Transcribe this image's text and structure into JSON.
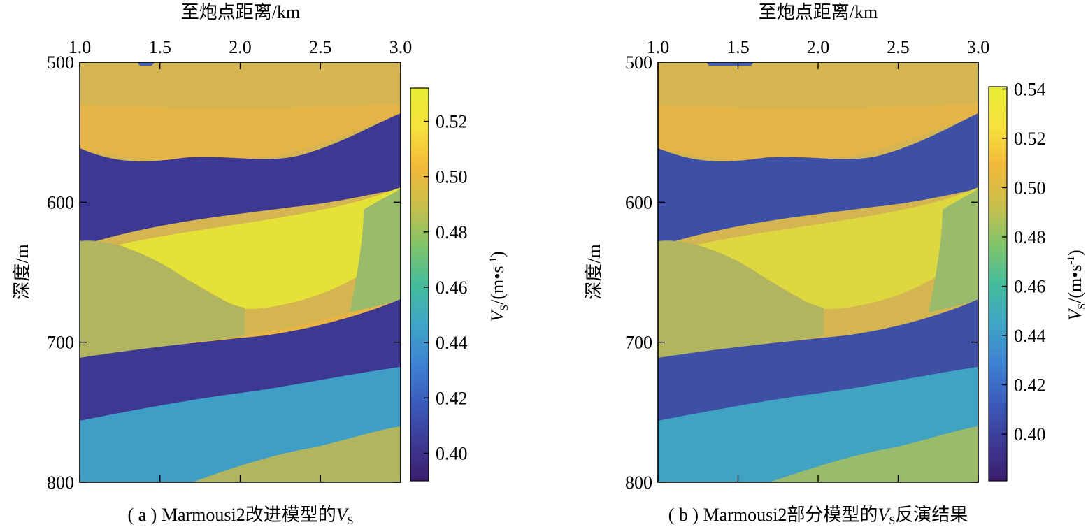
{
  "colors": {
    "layer_dark": "#3d3892",
    "layer_blue": "#3f5fb0",
    "layer_cyan": "#3f9ec5",
    "layer_teal": "#47aea5",
    "layer_green": "#9aba6c",
    "layer_olive": "#b2b55f",
    "layer_sand": "#d5b552",
    "layer_orange": "#e8b444",
    "layer_yellow": "#e4e137",
    "panel_b_dark": "#3e4fa6",
    "panel_b_cyan": "#41a3c2",
    "panel_b_yellow": "#ddd83f",
    "colormap": [
      "#3c1e6e",
      "#3c3b95",
      "#3a5cbc",
      "#3d82d3",
      "#3ea6c6",
      "#44bd9b",
      "#82c46a",
      "#c9bf4a",
      "#f3b93a",
      "#f6e23b",
      "#e8ee33"
    ]
  },
  "chart_data": [
    {
      "type": "heatmap",
      "caption_prefix": "( a ) Marmousi2改进模型的",
      "caption_var": "V",
      "caption_sub": "S",
      "caption_suffix": "",
      "xlabel": "至炮点距离/km",
      "ylabel": "深度/m",
      "xlim": [
        1.0,
        3.0
      ],
      "ylim": [
        500,
        800
      ],
      "x_ticks": [
        "1.0",
        "1.5",
        "2.0",
        "2.5",
        "3.0"
      ],
      "y_ticks": [
        "500",
        "600",
        "700",
        "800"
      ],
      "colorbar": {
        "label_var": "V",
        "label_sub": "S",
        "label_unit": "/(m•s",
        "label_exp": "-1",
        "label_close": ")",
        "range": [
          0.39,
          0.532
        ],
        "ticks": [
          "0.40",
          "0.42",
          "0.44",
          "0.46",
          "0.48",
          "0.50",
          "0.52"
        ]
      }
    },
    {
      "type": "heatmap",
      "caption_prefix": "( b ) Marmousi2部分模型的",
      "caption_var": "V",
      "caption_sub": "S",
      "caption_suffix": "反演结果",
      "xlabel": "至炮点距离/km",
      "ylabel": "深度/m",
      "xlim": [
        1.0,
        3.0
      ],
      "ylim": [
        500,
        800
      ],
      "x_ticks": [
        "1.0",
        "1.5",
        "2.0",
        "2.5",
        "3.0"
      ],
      "y_ticks": [
        "500",
        "600",
        "700",
        "800"
      ],
      "colorbar": {
        "label_var": "V",
        "label_sub": "S",
        "label_unit": "/(m•s",
        "label_exp": "-1",
        "label_close": ")",
        "range": [
          0.381,
          0.541
        ],
        "ticks": [
          "0.40",
          "0.42",
          "0.44",
          "0.46",
          "0.48",
          "0.50",
          "0.52",
          "0.54"
        ]
      }
    }
  ]
}
